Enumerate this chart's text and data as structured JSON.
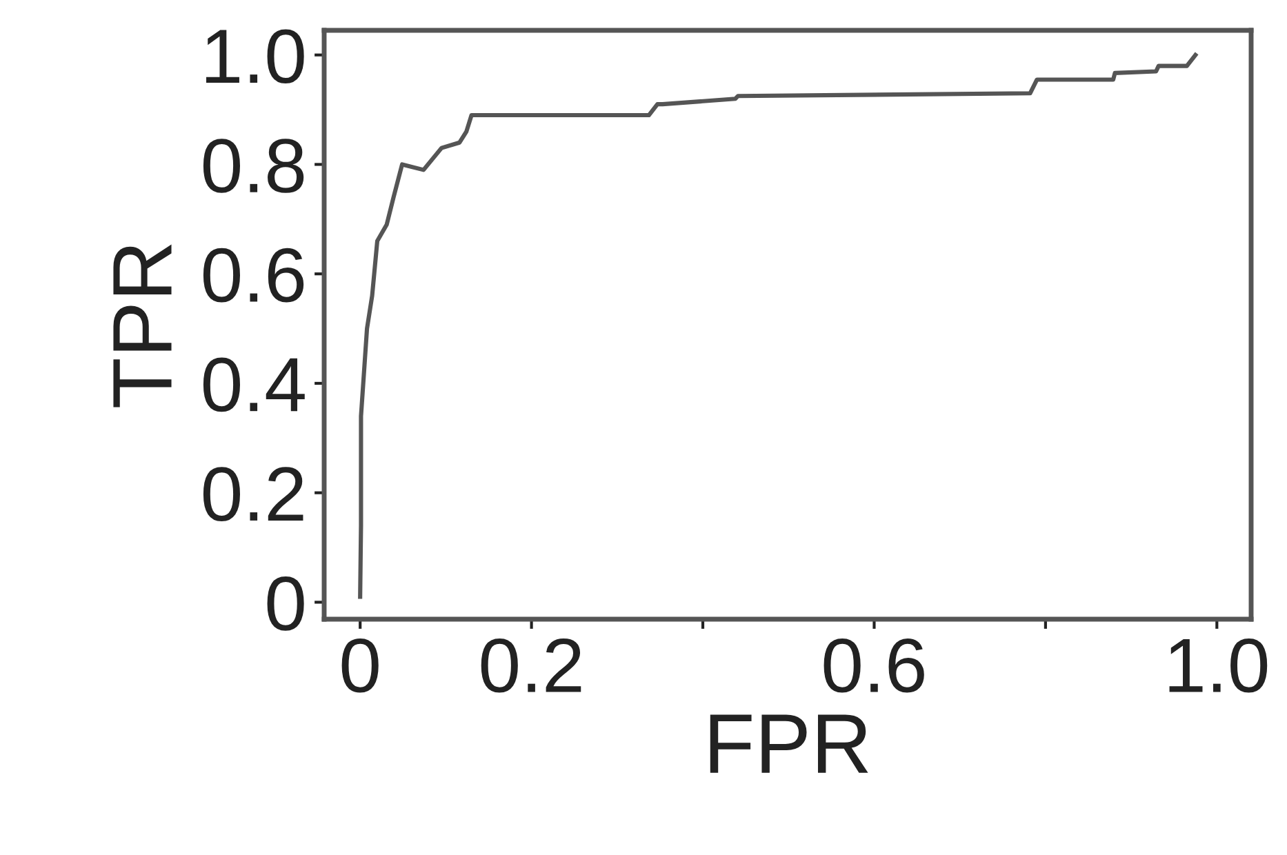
{
  "chart_data": {
    "type": "line",
    "xlabel": "FPR",
    "ylabel": "TPR",
    "x": [
      0,
      0.001,
      0.001,
      0.008,
      0.014,
      0.02,
      0.031,
      0.039,
      0.049,
      0.074,
      0.095,
      0.116,
      0.124,
      0.13,
      0.337,
      0.347,
      0.353,
      0.438,
      0.441,
      0.782,
      0.79,
      0.879,
      0.881,
      0.929,
      0.932,
      0.965,
      0.975
    ],
    "series": [
      {
        "color": "#555555",
        "values": [
          0.01,
          0.14,
          0.34,
          0.5,
          0.56,
          0.66,
          0.69,
          0.74,
          0.8,
          0.79,
          0.83,
          0.84,
          0.86,
          0.89,
          0.89,
          0.91,
          0.91,
          0.92,
          0.925,
          0.93,
          0.955,
          0.955,
          0.967,
          0.97,
          0.98,
          0.98,
          1.0
        ]
      }
    ],
    "xlim": [
      -0.042,
      1.04
    ],
    "ylim": [
      -0.031,
      1.045
    ],
    "xticks": [
      0,
      0.2,
      {
        "value": 0.4,
        "label": null
      },
      0.6,
      {
        "value": 0.8,
        "label": null
      },
      {
        "value": 1,
        "label": "1.0"
      }
    ],
    "yticks": [
      0,
      0.2,
      0.4,
      0.6,
      0.8,
      {
        "value": 1,
        "label": "1.0"
      }
    ],
    "grid": false,
    "marker": "none",
    "line_style": "solid"
  }
}
